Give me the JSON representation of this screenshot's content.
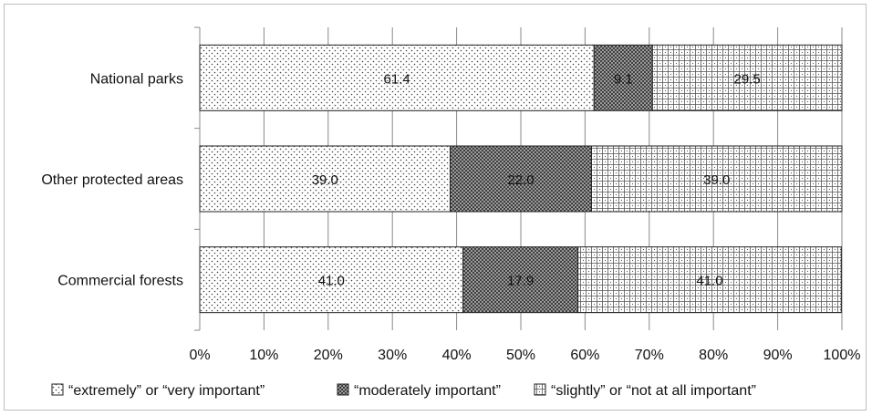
{
  "chart_data": {
    "type": "bar",
    "orientation": "horizontal",
    "stacked": true,
    "categories": [
      "National parks",
      "Other protected areas",
      "Commercial forests"
    ],
    "series": [
      {
        "name": "“extremely” or “very important”",
        "values": [
          61.4,
          39.0,
          41.0
        ],
        "pattern": "dots"
      },
      {
        "name": "“moderately important”",
        "values": [
          9.1,
          22.0,
          17.9
        ],
        "pattern": "dark-checker"
      },
      {
        "name": "“slightly” or “not at all important”",
        "values": [
          29.5,
          39.0,
          41.0
        ],
        "pattern": "grid"
      }
    ],
    "data_labels": [
      [
        "61.4",
        "9.1",
        "29.5"
      ],
      [
        "39.0",
        "22.0",
        "39.0"
      ],
      [
        "41.0",
        "17.9",
        "41.0"
      ]
    ],
    "xlim": [
      0,
      100
    ],
    "xticks": [
      "0%",
      "10%",
      "20%",
      "30%",
      "40%",
      "50%",
      "60%",
      "70%",
      "80%",
      "90%",
      "100%"
    ],
    "grid": "vertical",
    "legend_position": "bottom",
    "title": "",
    "xlabel": "",
    "ylabel": ""
  }
}
